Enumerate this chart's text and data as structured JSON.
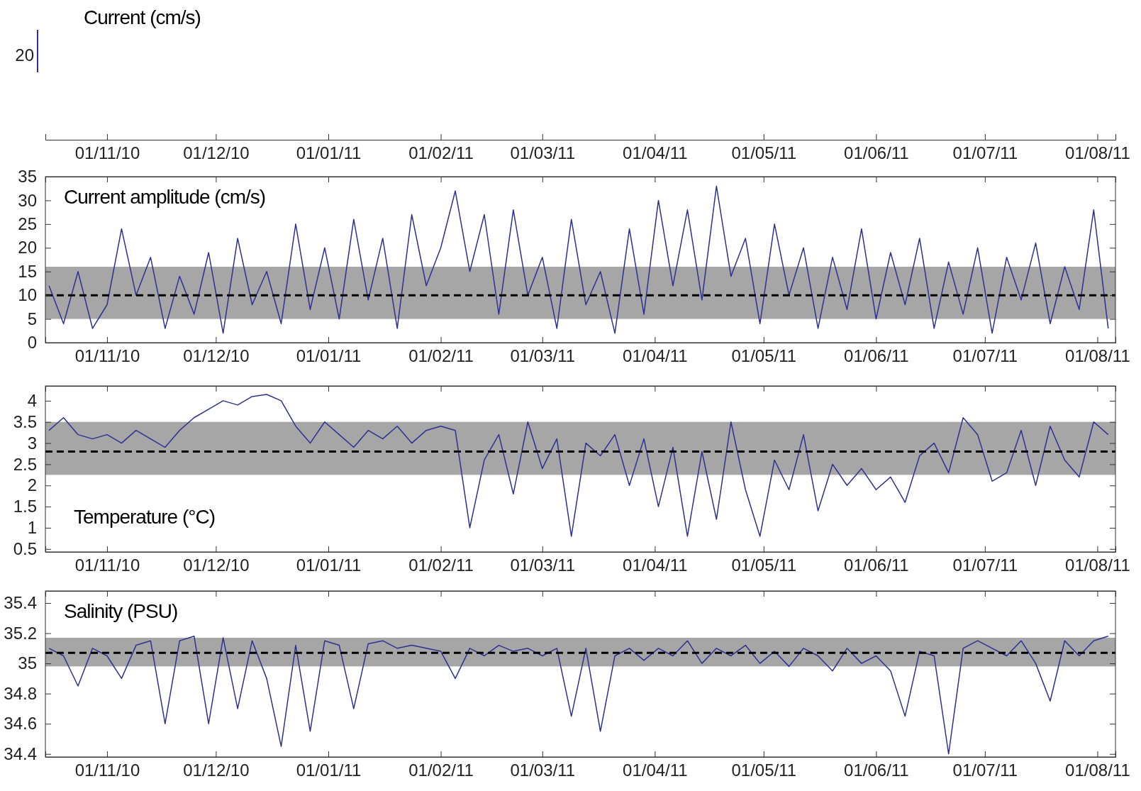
{
  "chart_data": [
    {
      "type": "other",
      "title": "Current (cm/s)",
      "annotations": [
        "20"
      ]
    },
    {
      "type": "line",
      "title": "Current amplitude (cm/s)",
      "xlim": [
        "2010-10-15",
        "2011-08-06"
      ],
      "ylim": [
        0,
        35
      ],
      "yticks": [
        0,
        5,
        10,
        15,
        20,
        25,
        30,
        35
      ],
      "xticks": [
        {
          "value": "2010-11-01",
          "label": "01/11/10"
        },
        {
          "value": "2010-12-01",
          "label": "01/12/10"
        },
        {
          "value": "2011-01-01",
          "label": "01/01/11"
        },
        {
          "value": "2011-02-01",
          "label": "01/02/11"
        },
        {
          "value": "2011-03-01",
          "label": "01/03/11"
        },
        {
          "value": "2011-04-01",
          "label": "01/04/11"
        },
        {
          "value": "2011-05-01",
          "label": "01/05/11"
        },
        {
          "value": "2011-06-01",
          "label": "01/06/11"
        },
        {
          "value": "2011-07-01",
          "label": "01/07/11"
        },
        {
          "value": "2011-08-01",
          "label": "01/08/11"
        }
      ],
      "x": [
        "2010-10-16",
        "2010-10-20",
        "2010-10-24",
        "2010-10-28",
        "2010-11-01",
        "2010-11-05",
        "2010-11-09",
        "2010-11-13",
        "2010-11-17",
        "2010-11-21",
        "2010-11-25",
        "2010-11-29",
        "2010-12-03",
        "2010-12-07",
        "2010-12-11",
        "2010-12-15",
        "2010-12-19",
        "2010-12-23",
        "2010-12-27",
        "2010-12-31",
        "2011-01-04",
        "2011-01-08",
        "2011-01-12",
        "2011-01-16",
        "2011-01-20",
        "2011-01-24",
        "2011-01-28",
        "2011-02-01",
        "2011-02-05",
        "2011-02-09",
        "2011-02-13",
        "2011-02-17",
        "2011-02-21",
        "2011-02-25",
        "2011-03-01",
        "2011-03-05",
        "2011-03-09",
        "2011-03-13",
        "2011-03-17",
        "2011-03-21",
        "2011-03-25",
        "2011-03-29",
        "2011-04-02",
        "2011-04-06",
        "2011-04-10",
        "2011-04-14",
        "2011-04-18",
        "2011-04-22",
        "2011-04-26",
        "2011-04-30",
        "2011-05-04",
        "2011-05-08",
        "2011-05-12",
        "2011-05-16",
        "2011-05-20",
        "2011-05-24",
        "2011-05-28",
        "2011-06-01",
        "2011-06-05",
        "2011-06-09",
        "2011-06-13",
        "2011-06-17",
        "2011-06-21",
        "2011-06-25",
        "2011-06-29",
        "2011-07-03",
        "2011-07-07",
        "2011-07-11",
        "2011-07-15",
        "2011-07-19",
        "2011-07-23",
        "2011-07-27",
        "2011-07-31",
        "2011-08-04"
      ],
      "series": [
        {
          "color": "#2e3192",
          "values": [
            12,
            4,
            15,
            3,
            8,
            24,
            10,
            18,
            3,
            14,
            6,
            19,
            2,
            22,
            8,
            15,
            4,
            25,
            7,
            20,
            5,
            26,
            9,
            22,
            3,
            27,
            12,
            20,
            32,
            15,
            27,
            6,
            28,
            10,
            18,
            3,
            26,
            8,
            15,
            2,
            24,
            6,
            30,
            12,
            28,
            9,
            33,
            14,
            22,
            4,
            25,
            10,
            20,
            3,
            18,
            7,
            24,
            5,
            19,
            8,
            22,
            3,
            17,
            6,
            20,
            2,
            18,
            9,
            21,
            4,
            16,
            7,
            28,
            3
          ]
        }
      ],
      "ref_lines": [
        {
          "axis": "y",
          "value": 10,
          "color": "#000000",
          "line_style": "dashed"
        }
      ],
      "bands": [
        {
          "axis": "y",
          "from": 5,
          "to": 16,
          "color": "#a6a6a6"
        }
      ]
    },
    {
      "type": "line",
      "title": "Temperature (°C)",
      "xlim": [
        "2010-10-15",
        "2011-08-06"
      ],
      "ylim": [
        0.43,
        4.35
      ],
      "yticks": [
        0.5,
        1,
        1.5,
        2,
        2.5,
        3,
        3.5,
        4
      ],
      "xticks": [
        {
          "value": "2010-11-01",
          "label": "01/11/10"
        },
        {
          "value": "2010-12-01",
          "label": "01/12/10"
        },
        {
          "value": "2011-01-01",
          "label": "01/01/11"
        },
        {
          "value": "2011-02-01",
          "label": "01/02/11"
        },
        {
          "value": "2011-03-01",
          "label": "01/03/11"
        },
        {
          "value": "2011-04-01",
          "label": "01/04/11"
        },
        {
          "value": "2011-05-01",
          "label": "01/05/11"
        },
        {
          "value": "2011-06-01",
          "label": "01/06/11"
        },
        {
          "value": "2011-07-01",
          "label": "01/07/11"
        },
        {
          "value": "2011-08-01",
          "label": "01/08/11"
        }
      ],
      "x": [
        "2010-10-16",
        "2010-10-20",
        "2010-10-24",
        "2010-10-28",
        "2010-11-01",
        "2010-11-05",
        "2010-11-09",
        "2010-11-13",
        "2010-11-17",
        "2010-11-21",
        "2010-11-25",
        "2010-11-29",
        "2010-12-03",
        "2010-12-07",
        "2010-12-11",
        "2010-12-15",
        "2010-12-19",
        "2010-12-23",
        "2010-12-27",
        "2010-12-31",
        "2011-01-04",
        "2011-01-08",
        "2011-01-12",
        "2011-01-16",
        "2011-01-20",
        "2011-01-24",
        "2011-01-28",
        "2011-02-01",
        "2011-02-05",
        "2011-02-09",
        "2011-02-13",
        "2011-02-17",
        "2011-02-21",
        "2011-02-25",
        "2011-03-01",
        "2011-03-05",
        "2011-03-09",
        "2011-03-13",
        "2011-03-17",
        "2011-03-21",
        "2011-03-25",
        "2011-03-29",
        "2011-04-02",
        "2011-04-06",
        "2011-04-10",
        "2011-04-14",
        "2011-04-18",
        "2011-04-22",
        "2011-04-26",
        "2011-04-30",
        "2011-05-04",
        "2011-05-08",
        "2011-05-12",
        "2011-05-16",
        "2011-05-20",
        "2011-05-24",
        "2011-05-28",
        "2011-06-01",
        "2011-06-05",
        "2011-06-09",
        "2011-06-13",
        "2011-06-17",
        "2011-06-21",
        "2011-06-25",
        "2011-06-29",
        "2011-07-03",
        "2011-07-07",
        "2011-07-11",
        "2011-07-15",
        "2011-07-19",
        "2011-07-23",
        "2011-07-27",
        "2011-07-31",
        "2011-08-04"
      ],
      "series": [
        {
          "color": "#2e3192",
          "values": [
            3.3,
            3.6,
            3.2,
            3.1,
            3.2,
            3.0,
            3.3,
            3.1,
            2.9,
            3.3,
            3.6,
            3.8,
            4.0,
            3.9,
            4.1,
            4.15,
            4.0,
            3.4,
            3.0,
            3.5,
            3.2,
            2.9,
            3.3,
            3.1,
            3.4,
            3.0,
            3.3,
            3.4,
            3.3,
            1.0,
            2.6,
            3.2,
            1.8,
            3.5,
            2.4,
            3.1,
            0.8,
            3.0,
            2.7,
            3.2,
            2.0,
            3.1,
            1.5,
            2.9,
            0.8,
            2.8,
            1.2,
            3.5,
            1.9,
            0.8,
            2.6,
            1.9,
            3.2,
            1.4,
            2.5,
            2.0,
            2.4,
            1.9,
            2.2,
            1.6,
            2.7,
            3.0,
            2.3,
            3.6,
            3.2,
            2.1,
            2.3,
            3.3,
            2.0,
            3.4,
            2.6,
            2.2,
            3.5,
            3.2
          ]
        }
      ],
      "ref_lines": [
        {
          "axis": "y",
          "value": 2.8,
          "color": "#000000",
          "line_style": "dashed"
        }
      ],
      "bands": [
        {
          "axis": "y",
          "from": 2.25,
          "to": 3.5,
          "color": "#a6a6a6"
        }
      ]
    },
    {
      "type": "line",
      "title": "Salinity (PSU)",
      "xlim": [
        "2010-10-15",
        "2011-08-06"
      ],
      "ylim": [
        34.38,
        35.48
      ],
      "yticks": [
        {
          "value": 34.4,
          "label": "34.4"
        },
        {
          "value": 34.6,
          "label": "34.6"
        },
        {
          "value": 34.8,
          "label": "34.8"
        },
        {
          "value": 35,
          "label": "35"
        },
        {
          "value": 35.2,
          "label": "35.2"
        },
        {
          "value": 35.4,
          "label": "35.4"
        }
      ],
      "xticks": [
        {
          "value": "2010-11-01",
          "label": "01/11/10"
        },
        {
          "value": "2010-12-01",
          "label": "01/12/10"
        },
        {
          "value": "2011-01-01",
          "label": "01/01/11"
        },
        {
          "value": "2011-02-01",
          "label": "01/02/11"
        },
        {
          "value": "2011-03-01",
          "label": "01/03/11"
        },
        {
          "value": "2011-04-01",
          "label": "01/04/11"
        },
        {
          "value": "2011-05-01",
          "label": "01/05/11"
        },
        {
          "value": "2011-06-01",
          "label": "01/06/11"
        },
        {
          "value": "2011-07-01",
          "label": "01/07/11"
        },
        {
          "value": "2011-08-01",
          "label": "01/08/11"
        }
      ],
      "x": [
        "2010-10-16",
        "2010-10-20",
        "2010-10-24",
        "2010-10-28",
        "2010-11-01",
        "2010-11-05",
        "2010-11-09",
        "2010-11-13",
        "2010-11-17",
        "2010-11-21",
        "2010-11-25",
        "2010-11-29",
        "2010-12-03",
        "2010-12-07",
        "2010-12-11",
        "2010-12-15",
        "2010-12-19",
        "2010-12-23",
        "2010-12-27",
        "2010-12-31",
        "2011-01-04",
        "2011-01-08",
        "2011-01-12",
        "2011-01-16",
        "2011-01-20",
        "2011-01-24",
        "2011-01-28",
        "2011-02-01",
        "2011-02-05",
        "2011-02-09",
        "2011-02-13",
        "2011-02-17",
        "2011-02-21",
        "2011-02-25",
        "2011-03-01",
        "2011-03-05",
        "2011-03-09",
        "2011-03-13",
        "2011-03-17",
        "2011-03-21",
        "2011-03-25",
        "2011-03-29",
        "2011-04-02",
        "2011-04-06",
        "2011-04-10",
        "2011-04-14",
        "2011-04-18",
        "2011-04-22",
        "2011-04-26",
        "2011-04-30",
        "2011-05-04",
        "2011-05-08",
        "2011-05-12",
        "2011-05-16",
        "2011-05-20",
        "2011-05-24",
        "2011-05-28",
        "2011-06-01",
        "2011-06-05",
        "2011-06-09",
        "2011-06-13",
        "2011-06-17",
        "2011-06-21",
        "2011-06-25",
        "2011-06-29",
        "2011-07-03",
        "2011-07-07",
        "2011-07-11",
        "2011-07-15",
        "2011-07-19",
        "2011-07-23",
        "2011-07-27",
        "2011-07-31",
        "2011-08-04"
      ],
      "series": [
        {
          "color": "#2e3192",
          "values": [
            35.1,
            35.05,
            34.85,
            35.1,
            35.05,
            34.9,
            35.12,
            35.15,
            34.6,
            35.15,
            35.18,
            34.6,
            35.17,
            34.7,
            35.15,
            34.9,
            34.45,
            35.12,
            34.55,
            35.15,
            35.12,
            34.7,
            35.13,
            35.15,
            35.1,
            35.12,
            35.1,
            35.08,
            34.9,
            35.1,
            35.05,
            35.12,
            35.08,
            35.1,
            35.05,
            35.1,
            34.65,
            35.1,
            34.55,
            35.05,
            35.1,
            35.02,
            35.1,
            35.05,
            35.15,
            35.0,
            35.1,
            35.05,
            35.12,
            35.0,
            35.08,
            34.98,
            35.1,
            35.05,
            34.95,
            35.1,
            35.0,
            35.05,
            34.95,
            34.65,
            35.08,
            35.05,
            34.4,
            35.1,
            35.15,
            35.1,
            35.05,
            35.15,
            35.0,
            34.75,
            35.15,
            35.05,
            35.15,
            35.18
          ]
        }
      ],
      "ref_lines": [
        {
          "axis": "y",
          "value": 35.07,
          "color": "#000000",
          "line_style": "dashed"
        }
      ],
      "bands": [
        {
          "axis": "y",
          "from": 34.98,
          "to": 35.17,
          "color": "#a6a6a6"
        }
      ]
    }
  ]
}
